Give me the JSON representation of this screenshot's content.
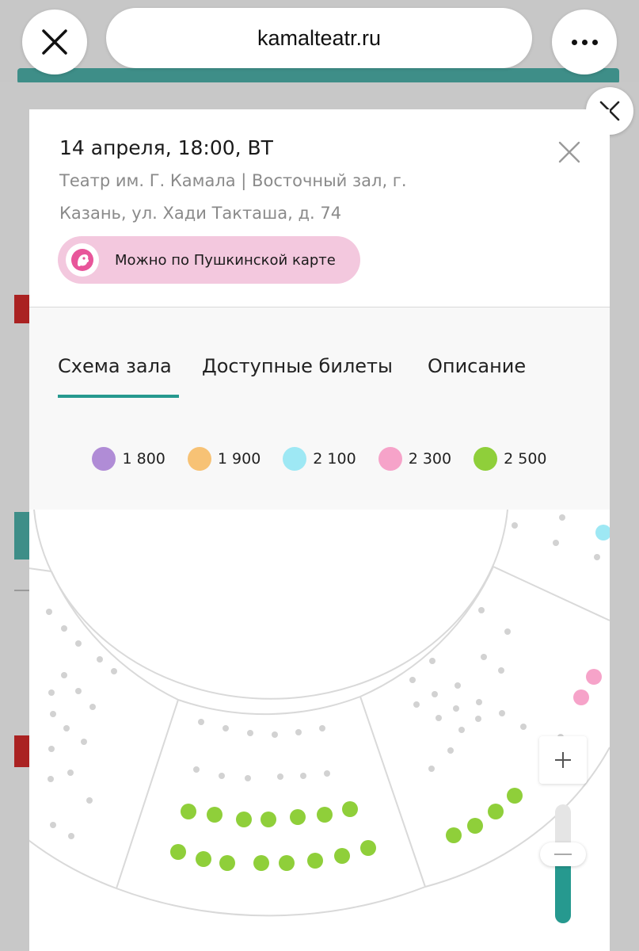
{
  "browser": {
    "url": "kamalteatr.ru",
    "close_icon": "close-icon",
    "menu_icon": "more-icon"
  },
  "event": {
    "datetime": "14 апреля, 18:00, ВТ",
    "venue_line1": "Театр им. Г. Камала | Восточный зал, г.",
    "venue_line2": "Казань, ул. Хади Такташа, д. 74",
    "pushkin_label": "Можно по Пушкинской карте"
  },
  "tabs": [
    {
      "label": "Схема зала",
      "active": true
    },
    {
      "label": "Доступные билеты",
      "active": false
    },
    {
      "label": "Описание",
      "active": false
    }
  ],
  "legend": [
    {
      "price": "1 800",
      "color": "#b08cd6"
    },
    {
      "price": "1 900",
      "color": "#f7c275"
    },
    {
      "price": "2 100",
      "color": "#9ee8f4"
    },
    {
      "price": "2 300",
      "color": "#f6a3c9"
    },
    {
      "price": "2 500",
      "color": "#8fcf3a"
    }
  ],
  "zoom": {
    "plus_label": "+",
    "minus_label": "−",
    "level": 0.55
  },
  "colors": {
    "accent": "#26998f",
    "seat_unavailable": "#d2d2d2",
    "seat_green": "#8fcf3a",
    "seat_pink": "#f6a3c9",
    "seat_blue": "#9ee8f4"
  }
}
